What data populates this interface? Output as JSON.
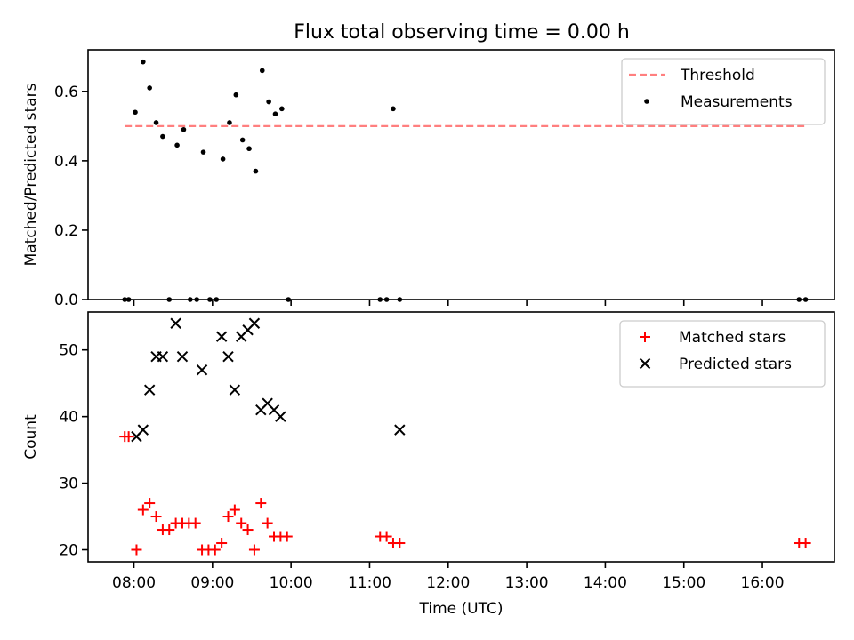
{
  "title": "Flux total observing time = 0.00 h",
  "chart_data": [
    {
      "type": "scatter",
      "ylabel": "Matched/Predicted stars",
      "xlim": [
        "07:25",
        "16:55"
      ],
      "ylim": [
        0,
        0.72
      ],
      "yticks": [
        "0.0",
        "0.2",
        "0.4",
        "0.6"
      ],
      "grid": false,
      "legend_position": "top-right",
      "threshold": {
        "name": "Threshold",
        "value": 0.5,
        "x_start": "07:53",
        "x_end": "16:32",
        "color": "#ff7f7f"
      },
      "series": [
        {
          "name": "Measurements",
          "marker": "dot",
          "color": "#000000",
          "x": [
            "07:53",
            "07:56",
            "08:01",
            "08:07",
            "08:12",
            "08:17",
            "08:22",
            "08:27",
            "08:33",
            "08:38",
            "08:43",
            "08:48",
            "08:53",
            "08:58",
            "09:03",
            "09:08",
            "09:13",
            "09:18",
            "09:23",
            "09:28",
            "09:33",
            "09:38",
            "09:43",
            "09:48",
            "09:53",
            "09:58",
            "11:08",
            "11:13",
            "11:18",
            "11:23"
          ],
          "y": [
            0,
            0,
            0.54,
            0.685,
            0.61,
            0.51,
            0.47,
            0,
            0.445,
            0.49,
            0,
            0,
            0.425,
            0,
            0,
            0.405,
            0.51,
            0.59,
            0.46,
            0.435,
            0.37,
            0.66,
            0.57,
            0.535,
            0.55,
            0,
            0,
            0,
            0.55,
            0
          ]
        },
        {
          "name": "Measurements",
          "marker": "dot",
          "color": "#000000",
          "x": [
            "16:28",
            "16:33"
          ],
          "y": [
            0,
            0
          ]
        }
      ]
    },
    {
      "type": "scatter",
      "xlabel": "Time (UTC)",
      "ylabel": "Count",
      "xlim": [
        "07:25",
        "16:55"
      ],
      "ylim": [
        18.2,
        55.7
      ],
      "xticks": [
        "08:00",
        "09:00",
        "10:00",
        "11:00",
        "12:00",
        "13:00",
        "14:00",
        "15:00",
        "16:00"
      ],
      "yticks": [
        "20",
        "30",
        "40",
        "50"
      ],
      "grid": false,
      "legend_position": "top-right",
      "series": [
        {
          "name": "Matched stars",
          "marker": "plus",
          "color": "#ff0000",
          "x": [
            "07:53",
            "07:56",
            "08:02",
            "08:07",
            "08:12",
            "08:17",
            "08:22",
            "08:27",
            "08:32",
            "08:37",
            "08:42",
            "08:47",
            "08:52",
            "08:57",
            "09:02",
            "09:07",
            "09:12",
            "09:17",
            "09:22",
            "09:27",
            "09:32",
            "09:37",
            "09:42",
            "09:47",
            "09:52",
            "09:57",
            "11:08",
            "11:13",
            "11:18",
            "11:23",
            "16:28",
            "16:33"
          ],
          "y": [
            37,
            37,
            20,
            26,
            27,
            25,
            23,
            23,
            24,
            24,
            24,
            24,
            20,
            20,
            20,
            21,
            25,
            26,
            24,
            23,
            20,
            27,
            24,
            22,
            22,
            22,
            22,
            22,
            21,
            21,
            21,
            21
          ]
        },
        {
          "name": "Predicted stars",
          "marker": "x",
          "color": "#000000",
          "x": [
            "08:02",
            "08:07",
            "08:12",
            "08:17",
            "08:22",
            "08:32",
            "08:37",
            "08:52",
            "09:07",
            "09:12",
            "09:17",
            "09:22",
            "09:27",
            "09:32",
            "09:37",
            "09:42",
            "09:47",
            "09:52",
            "11:23"
          ],
          "y": [
            37,
            38,
            44,
            49,
            49,
            54,
            49,
            47,
            52,
            49,
            44,
            52,
            53,
            54,
            41,
            42,
            41,
            40,
            38
          ]
        }
      ]
    }
  ]
}
